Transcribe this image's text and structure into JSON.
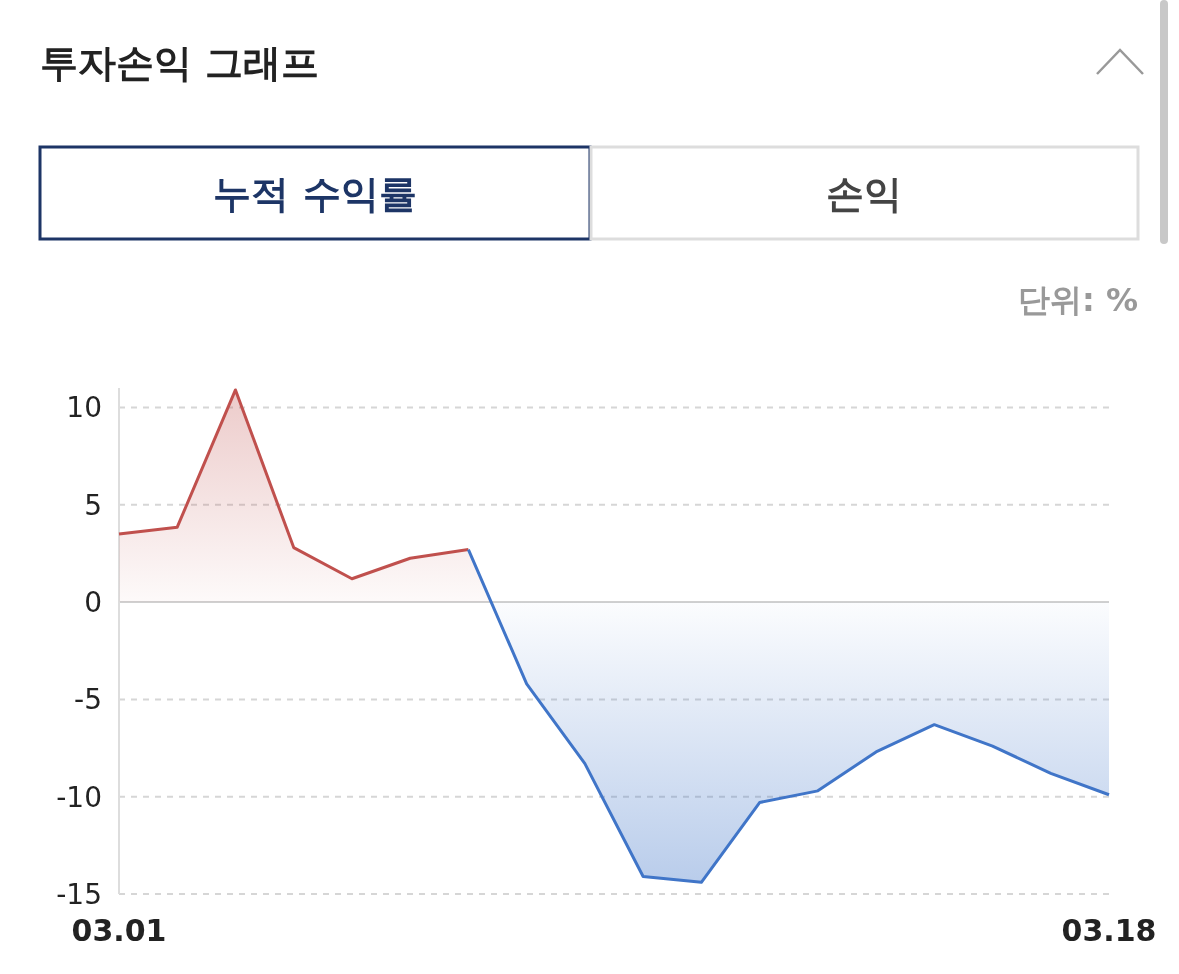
{
  "chart_data": {
    "type": "area",
    "title": "투자손익 그래프",
    "annotations": [
      "누적 수익률",
      "손익",
      "단위: %"
    ],
    "series": [
      {
        "color": "#c0504d",
        "x": [
          "--03-01",
          "--03-02",
          "--03-03",
          "--03-04",
          "--03-05",
          "--03-06",
          "--03-07"
        ],
        "values": [
          3.5,
          3.85,
          10.9,
          2.8,
          1.2,
          2.25,
          2.7
        ]
      },
      {
        "color": "#4075c8",
        "x": [
          "--03-07",
          "--03-08",
          "--03-09",
          "--03-10",
          "--03-11",
          "--03-12",
          "--03-13",
          "--03-14",
          "--03-15",
          "--03-16",
          "--03-17",
          "--03-18"
        ],
        "values": [
          2.7,
          -4.2,
          -8.3,
          -14.1,
          -14.4,
          -10.3,
          -9.7,
          -7.7,
          -6.3,
          -7.4,
          -8.8,
          -9.9
        ]
      }
    ],
    "xlim": [
      "--03-01",
      "--03-18"
    ],
    "xticks": [
      {
        "value": "--03-01",
        "label": "03.01"
      },
      {
        "value": "--03-18",
        "label": "03.18"
      }
    ],
    "ylim": [
      -15,
      11
    ],
    "yticks": [
      -15,
      -10,
      -5,
      0,
      5,
      10
    ],
    "grid": "y",
    "marker": "none",
    "line_style": "solid"
  }
}
